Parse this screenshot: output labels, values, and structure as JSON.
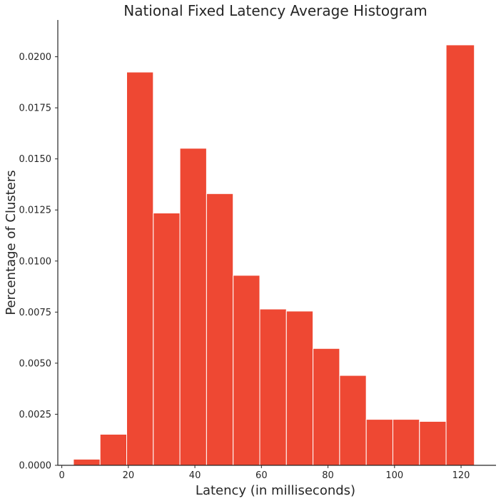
{
  "colors": {
    "bar": "#ee4833",
    "text": "#262626",
    "background": "#ffffff"
  },
  "chart_data": {
    "type": "bar",
    "title": "National Fixed Latency Average Histogram",
    "xlabel": "Latency (in milliseconds)",
    "ylabel": "Percentage of Clusters",
    "xlim": [
      -1.2,
      130.5
    ],
    "ylim": [
      0,
      0.0218
    ],
    "xticks": [
      0,
      20,
      40,
      60,
      80,
      100,
      120
    ],
    "xtick_labels": [
      "0",
      "20",
      "40",
      "60",
      "80",
      "100",
      "120"
    ],
    "yticks": [
      0,
      0.0025,
      0.005,
      0.0075,
      0.01,
      0.0125,
      0.015,
      0.0175,
      0.02
    ],
    "ytick_labels": [
      "0.0000",
      "0.0025",
      "0.0050",
      "0.0075",
      "0.0100",
      "0.0125",
      "0.0150",
      "0.0175",
      "0.0200"
    ],
    "bin_edges": [
      3.5,
      11.5,
      19.5,
      27.5,
      35.5,
      43.5,
      51.5,
      59.5,
      67.5,
      75.5,
      83.5,
      91.5,
      99.5,
      107.5,
      115.5,
      124.0
    ],
    "values": [
      0.0003,
      0.00152,
      0.01925,
      0.01235,
      0.01552,
      0.0133,
      0.0093,
      0.00765,
      0.00755,
      0.00572,
      0.0044,
      0.00225,
      0.00225,
      0.00215,
      0.02058
    ],
    "grid": false,
    "legend": "none"
  }
}
